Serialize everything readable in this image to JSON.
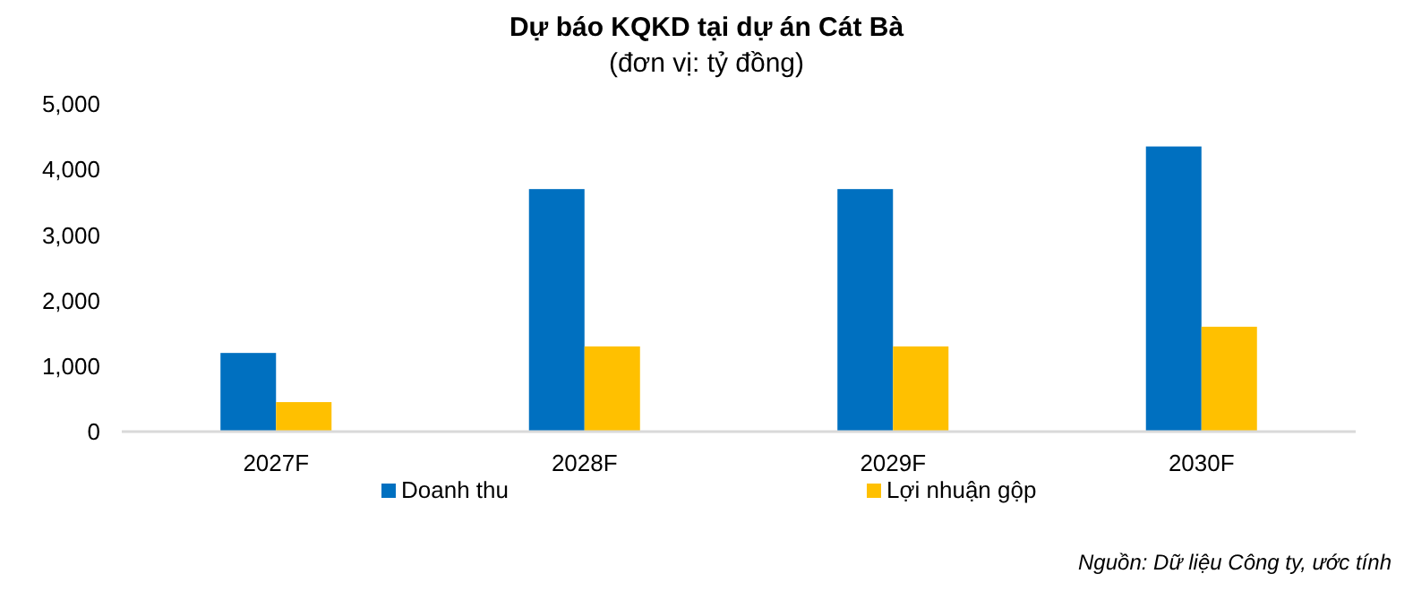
{
  "chart_data": {
    "type": "bar",
    "title": "Dự báo KQKD tại dự án Cát Bà",
    "subtitle": "(đơn vị: tỷ đồng)",
    "categories": [
      "2027F",
      "2028F",
      "2029F",
      "2030F"
    ],
    "series": [
      {
        "name": "Doanh thu",
        "color": "#0070c0",
        "values": [
          1200,
          3700,
          3700,
          4350
        ]
      },
      {
        "name": "Lợi nhuận gộp",
        "color": "#ffc000",
        "values": [
          450,
          1300,
          1300,
          1600
        ]
      }
    ],
    "ylim": [
      0,
      5000
    ],
    "yticks": [
      {
        "value": 0,
        "label": "0"
      },
      {
        "value": 1000,
        "label": "1,000"
      },
      {
        "value": 2000,
        "label": "2,000"
      },
      {
        "value": 3000,
        "label": "3,000"
      },
      {
        "value": 4000,
        "label": "4,000"
      },
      {
        "value": 5000,
        "label": "5,000"
      }
    ],
    "grid": false,
    "legend": "bottom",
    "annotations": [
      "Nguồn: Dữ liệu Công ty, ước tính"
    ]
  }
}
